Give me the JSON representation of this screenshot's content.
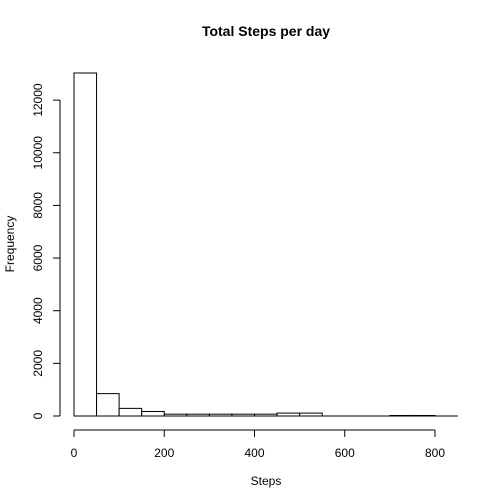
{
  "chart_data": {
    "type": "bar",
    "title": "Total Steps per day",
    "xlabel": "Steps",
    "ylabel": "Frequency",
    "bin_width": 50,
    "bins": [
      {
        "start": 0,
        "end": 50,
        "value": 13030
      },
      {
        "start": 50,
        "end": 100,
        "value": 850
      },
      {
        "start": 100,
        "end": 150,
        "value": 290
      },
      {
        "start": 150,
        "end": 200,
        "value": 170
      },
      {
        "start": 200,
        "end": 250,
        "value": 70
      },
      {
        "start": 250,
        "end": 300,
        "value": 70
      },
      {
        "start": 300,
        "end": 350,
        "value": 70
      },
      {
        "start": 350,
        "end": 400,
        "value": 70
      },
      {
        "start": 400,
        "end": 450,
        "value": 70
      },
      {
        "start": 450,
        "end": 500,
        "value": 110
      },
      {
        "start": 500,
        "end": 550,
        "value": 110
      },
      {
        "start": 550,
        "end": 600,
        "value": 0
      },
      {
        "start": 600,
        "end": 650,
        "value": 0
      },
      {
        "start": 650,
        "end": 700,
        "value": 0
      },
      {
        "start": 700,
        "end": 750,
        "value": 20
      },
      {
        "start": 750,
        "end": 800,
        "value": 20
      }
    ],
    "x_ticks": [
      0,
      200,
      400,
      600,
      800
    ],
    "x_tick_labels": [
      "0",
      "200",
      "400",
      "600",
      "800"
    ],
    "y_ticks": [
      0,
      2000,
      4000,
      6000,
      8000,
      10000,
      12000
    ],
    "y_tick_labels": [
      "0",
      "2000",
      "4000",
      "6000",
      "8000",
      "10000",
      "12000"
    ],
    "xlim": [
      0,
      850
    ],
    "ylim": [
      0,
      13030
    ],
    "grid": false,
    "legend": "none"
  }
}
